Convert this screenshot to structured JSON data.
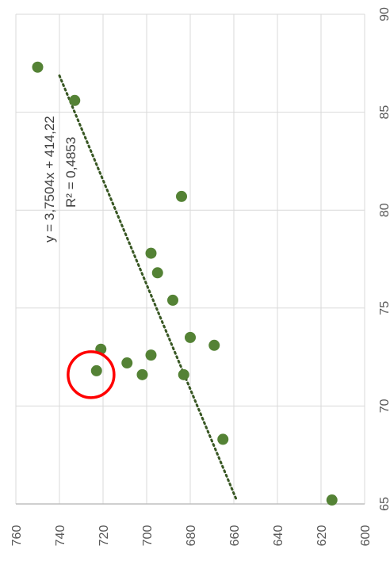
{
  "chart_data": {
    "type": "scatter",
    "orientation": "rotated-90-clockwise",
    "x_axis": {
      "range": [
        600,
        760
      ],
      "ticks": [
        "600",
        "620",
        "640",
        "660",
        "680",
        "700",
        "720",
        "740",
        "760"
      ]
    },
    "y_axis": {
      "range": [
        65,
        90
      ],
      "ticks": [
        "65",
        "70",
        "75",
        "80",
        "85",
        "90"
      ]
    },
    "grid": true,
    "points": [
      {
        "x": 750,
        "y": 87.3
      },
      {
        "x": 733,
        "y": 85.6
      },
      {
        "x": 684,
        "y": 80.7
      },
      {
        "x": 698,
        "y": 77.8
      },
      {
        "x": 695,
        "y": 76.8
      },
      {
        "x": 688,
        "y": 75.4
      },
      {
        "x": 680,
        "y": 73.5
      },
      {
        "x": 669,
        "y": 73.1
      },
      {
        "x": 721,
        "y": 72.9
      },
      {
        "x": 698,
        "y": 72.6
      },
      {
        "x": 709,
        "y": 72.2
      },
      {
        "x": 723,
        "y": 71.8
      },
      {
        "x": 702,
        "y": 71.6
      },
      {
        "x": 683,
        "y": 71.6
      },
      {
        "x": 665,
        "y": 68.3
      },
      {
        "x": 615,
        "y": 65.2
      }
    ],
    "trendline": {
      "type": "linear",
      "style": "dotted",
      "x_start": 740,
      "x_end": 659,
      "equation": "y = 3,7504x + 414,22",
      "r_squared": "R² = 0,4853"
    },
    "highlight": {
      "x": 725.5,
      "y": 71.6,
      "shape": "circle"
    },
    "colors": {
      "point": "#548235",
      "trendline": "#385723",
      "highlight": "#ff0000",
      "grid": "#d9d9d9",
      "axis": "#bfbfbf"
    }
  }
}
